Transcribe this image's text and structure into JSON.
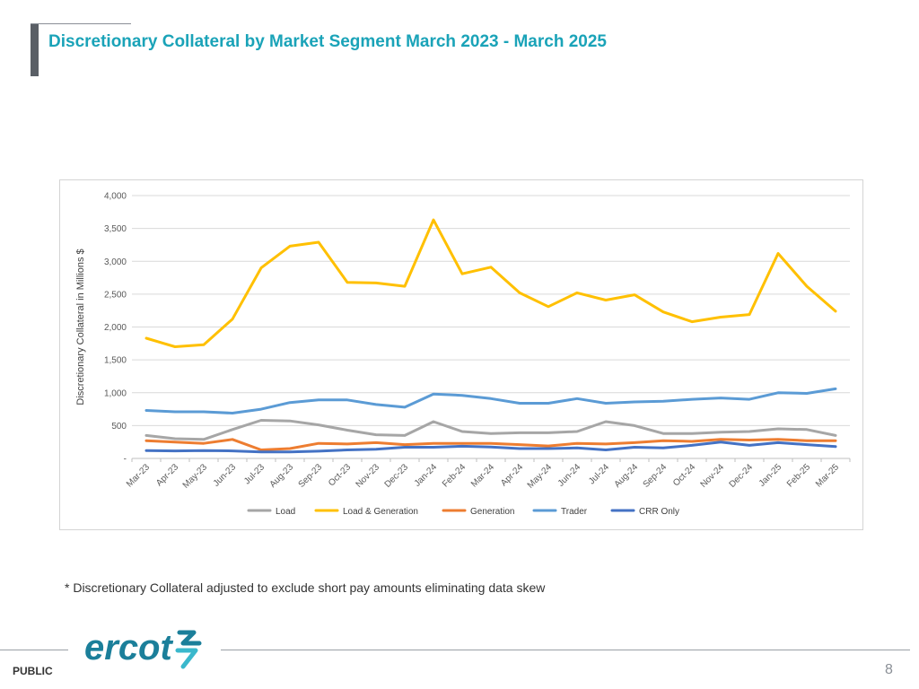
{
  "page": {
    "title": "Discretionary Collateral by Market Segment March 2023 - March 2025",
    "footnote": "* Discretionary Collateral adjusted to exclude short pay amounts eliminating data skew",
    "classification": "PUBLIC",
    "page_number": "8",
    "logo_text": "ercot"
  },
  "colors": {
    "title": "#1aa3b8",
    "Load": "#a6a6a6",
    "Load & Generation": "#ffc000",
    "Generation": "#ed7d31",
    "Trader": "#5b9bd5",
    "CRR Only": "#4472c4"
  },
  "chart_data": {
    "type": "line",
    "title": "",
    "xlabel": "",
    "ylabel": "Discretionary Collateral in Millions $",
    "ylim": [
      0,
      4000
    ],
    "yticks": [
      0,
      500,
      1000,
      1500,
      2000,
      2500,
      3000,
      3500,
      4000
    ],
    "ytick_labels": [
      "-",
      "500",
      "1,000",
      "1,500",
      "2,000",
      "2,500",
      "3,000",
      "3,500",
      "4,000"
    ],
    "grid": true,
    "legend_position": "bottom",
    "categories": [
      "Mar-23",
      "Apr-23",
      "May-23",
      "Jun-23",
      "Jul-23",
      "Aug-23",
      "Sep-23",
      "Oct-23",
      "Nov-23",
      "Dec-23",
      "Jan-24",
      "Feb-24",
      "Mar-24",
      "Apr-24",
      "May-24",
      "Jun-24",
      "Jul-24",
      "Aug-24",
      "Sep-24",
      "Oct-24",
      "Nov-24",
      "Dec-24",
      "Jan-25",
      "Feb-25",
      "Mar-25"
    ],
    "series": [
      {
        "name": "Load",
        "values": [
          350,
          300,
          290,
          440,
          580,
          570,
          510,
          430,
          360,
          350,
          560,
          410,
          380,
          390,
          390,
          410,
          560,
          500,
          380,
          380,
          400,
          410,
          450,
          440,
          350
        ]
      },
      {
        "name": "Load & Generation",
        "values": [
          1830,
          1700,
          1730,
          2120,
          2900,
          3230,
          3290,
          2680,
          2670,
          2620,
          3630,
          2810,
          2910,
          2520,
          2310,
          2520,
          2410,
          2490,
          2230,
          2080,
          2150,
          2190,
          3120,
          2620,
          2240
        ]
      },
      {
        "name": "Generation",
        "values": [
          270,
          250,
          230,
          290,
          130,
          150,
          230,
          220,
          240,
          210,
          230,
          230,
          230,
          210,
          190,
          230,
          220,
          240,
          270,
          260,
          290,
          280,
          290,
          270,
          270
        ]
      },
      {
        "name": "Trader",
        "values": [
          730,
          710,
          710,
          690,
          750,
          850,
          890,
          890,
          820,
          780,
          980,
          960,
          910,
          840,
          840,
          910,
          840,
          860,
          870,
          900,
          920,
          900,
          1000,
          990,
          1060
        ]
      },
      {
        "name": "CRR Only",
        "values": [
          120,
          115,
          120,
          115,
          100,
          100,
          110,
          130,
          140,
          170,
          170,
          185,
          175,
          150,
          150,
          160,
          130,
          170,
          160,
          200,
          250,
          200,
          240,
          210,
          180
        ]
      }
    ]
  }
}
